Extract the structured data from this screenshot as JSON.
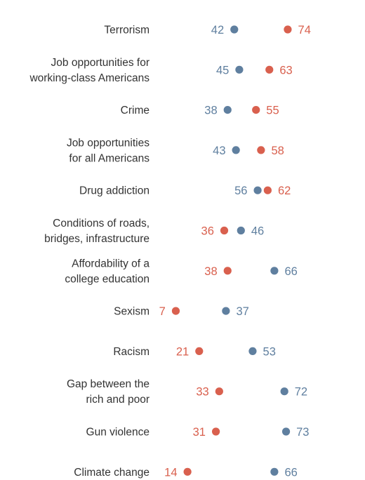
{
  "chart_data": {
    "type": "dot",
    "xlim": [
      0,
      100
    ],
    "grid": false,
    "legend": "none",
    "series": [
      {
        "key": "blue",
        "color": "#5f7f9f"
      },
      {
        "key": "red",
        "color": "#d9604e"
      }
    ],
    "categories": [
      {
        "label_lines": [
          "Terrorism"
        ],
        "blue": 42,
        "red": 74
      },
      {
        "label_lines": [
          "Job opportunities for",
          "working-class Americans"
        ],
        "blue": 45,
        "red": 63
      },
      {
        "label_lines": [
          "Crime"
        ],
        "blue": 38,
        "red": 55
      },
      {
        "label_lines": [
          "Job opportunities",
          "for all Americans"
        ],
        "blue": 43,
        "red": 58
      },
      {
        "label_lines": [
          "Drug addiction"
        ],
        "blue": 56,
        "red": 62
      },
      {
        "label_lines": [
          "Conditions of roads,",
          "bridges, infrastructure"
        ],
        "blue": 46,
        "red": 36
      },
      {
        "label_lines": [
          "Affordability of a",
          "college education"
        ],
        "blue": 66,
        "red": 38
      },
      {
        "label_lines": [
          "Sexism"
        ],
        "blue": 37,
        "red": 7
      },
      {
        "label_lines": [
          "Racism"
        ],
        "blue": 53,
        "red": 21
      },
      {
        "label_lines": [
          "Gap between the",
          "rich and poor"
        ],
        "blue": 72,
        "red": 33
      },
      {
        "label_lines": [
          "Gun violence"
        ],
        "blue": 73,
        "red": 31
      },
      {
        "label_lines": [
          "Climate change"
        ],
        "blue": 66,
        "red": 14
      }
    ]
  }
}
